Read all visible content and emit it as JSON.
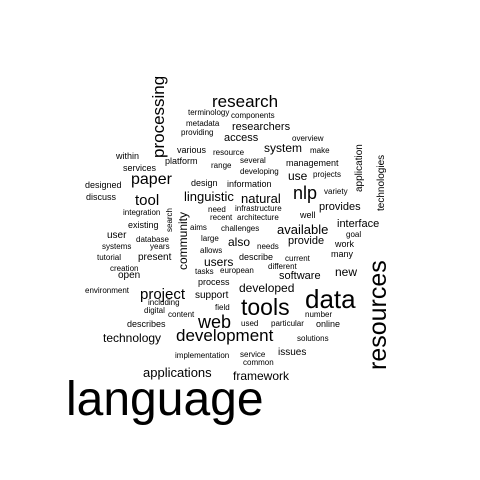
{
  "words": [
    {
      "text": "language",
      "rotated": false
    },
    {
      "text": "resources",
      "rotated": true
    },
    {
      "text": "data",
      "rotated": false
    },
    {
      "text": "tools",
      "rotated": false
    },
    {
      "text": "development",
      "rotated": false
    },
    {
      "text": "processing",
      "rotated": true
    },
    {
      "text": "research",
      "rotated": false
    },
    {
      "text": "web",
      "rotated": false
    },
    {
      "text": "paper",
      "rotated": false
    },
    {
      "text": "project",
      "rotated": false
    },
    {
      "text": "nlp",
      "rotated": false
    },
    {
      "text": "tool",
      "rotated": false
    },
    {
      "text": "applications",
      "rotated": false
    },
    {
      "text": "linguistic",
      "rotated": false
    },
    {
      "text": "natural",
      "rotated": false
    },
    {
      "text": "available",
      "rotated": false
    },
    {
      "text": "developed",
      "rotated": false
    },
    {
      "text": "technology",
      "rotated": false
    },
    {
      "text": "framework",
      "rotated": false
    },
    {
      "text": "community",
      "rotated": true
    },
    {
      "text": "system",
      "rotated": false
    },
    {
      "text": "researchers",
      "rotated": false
    },
    {
      "text": "access",
      "rotated": false
    },
    {
      "text": "use",
      "rotated": false
    },
    {
      "text": "users",
      "rotated": false
    },
    {
      "text": "also",
      "rotated": false
    },
    {
      "text": "software",
      "rotated": false
    },
    {
      "text": "new",
      "rotated": false
    },
    {
      "text": "provides",
      "rotated": false
    },
    {
      "text": "interface",
      "rotated": false
    },
    {
      "text": "provide",
      "rotated": false
    },
    {
      "text": "application",
      "rotated": true
    },
    {
      "text": "technologies",
      "rotated": true
    },
    {
      "text": "support",
      "rotated": false
    },
    {
      "text": "issues",
      "rotated": false
    },
    {
      "text": "user",
      "rotated": false
    },
    {
      "text": "open",
      "rotated": false
    },
    {
      "text": "present",
      "rotated": false
    },
    {
      "text": "within",
      "rotated": false
    },
    {
      "text": "services",
      "rotated": false
    },
    {
      "text": "platform",
      "rotated": false
    },
    {
      "text": "various",
      "rotated": false
    },
    {
      "text": "design",
      "rotated": false
    },
    {
      "text": "information",
      "rotated": false
    },
    {
      "text": "management",
      "rotated": false
    },
    {
      "text": "designed",
      "rotated": false
    },
    {
      "text": "discuss",
      "rotated": false
    },
    {
      "text": "existing",
      "rotated": false
    },
    {
      "text": "describes",
      "rotated": false
    },
    {
      "text": "process",
      "rotated": false
    },
    {
      "text": "describe",
      "rotated": false
    },
    {
      "text": "many",
      "rotated": false
    },
    {
      "text": "work",
      "rotated": false
    },
    {
      "text": "online",
      "rotated": false
    },
    {
      "text": "implementation",
      "rotated": false
    },
    {
      "text": "service",
      "rotated": false
    },
    {
      "text": "solutions",
      "rotated": false
    },
    {
      "text": "needs",
      "rotated": false
    },
    {
      "text": "current",
      "rotated": false
    },
    {
      "text": "different",
      "rotated": false
    },
    {
      "text": "well",
      "rotated": false
    },
    {
      "text": "large",
      "rotated": false
    },
    {
      "text": "challenges",
      "rotated": false
    },
    {
      "text": "architecture",
      "rotated": false
    },
    {
      "text": "recent",
      "rotated": false
    },
    {
      "text": "infrastructure",
      "rotated": false
    },
    {
      "text": "need",
      "rotated": false
    },
    {
      "text": "developing",
      "rotated": false
    },
    {
      "text": "several",
      "rotated": false
    },
    {
      "text": "range",
      "rotated": false
    },
    {
      "text": "resource",
      "rotated": false
    },
    {
      "text": "overview",
      "rotated": false
    },
    {
      "text": "make",
      "rotated": false
    },
    {
      "text": "projects",
      "rotated": false
    },
    {
      "text": "components",
      "rotated": false
    },
    {
      "text": "terminology",
      "rotated": false
    },
    {
      "text": "metadata",
      "rotated": false
    },
    {
      "text": "providing",
      "rotated": false
    },
    {
      "text": "variety",
      "rotated": false
    },
    {
      "text": "goal",
      "rotated": false
    },
    {
      "text": "aims",
      "rotated": false
    },
    {
      "text": "allows",
      "rotated": false
    },
    {
      "text": "tasks",
      "rotated": false
    },
    {
      "text": "european",
      "rotated": false
    },
    {
      "text": "integration",
      "rotated": false
    },
    {
      "text": "database",
      "rotated": false
    },
    {
      "text": "years",
      "rotated": false
    },
    {
      "text": "systems",
      "rotated": false
    },
    {
      "text": "tutorial",
      "rotated": false
    },
    {
      "text": "creation",
      "rotated": false
    },
    {
      "text": "environment",
      "rotated": false
    },
    {
      "text": "including",
      "rotated": false
    },
    {
      "text": "digital",
      "rotated": false
    },
    {
      "text": "content",
      "rotated": false
    },
    {
      "text": "field",
      "rotated": false
    },
    {
      "text": "used",
      "rotated": false
    },
    {
      "text": "particular",
      "rotated": false
    },
    {
      "text": "number",
      "rotated": false
    },
    {
      "text": "common",
      "rotated": false
    },
    {
      "text": "search",
      "rotated": true
    }
  ]
}
